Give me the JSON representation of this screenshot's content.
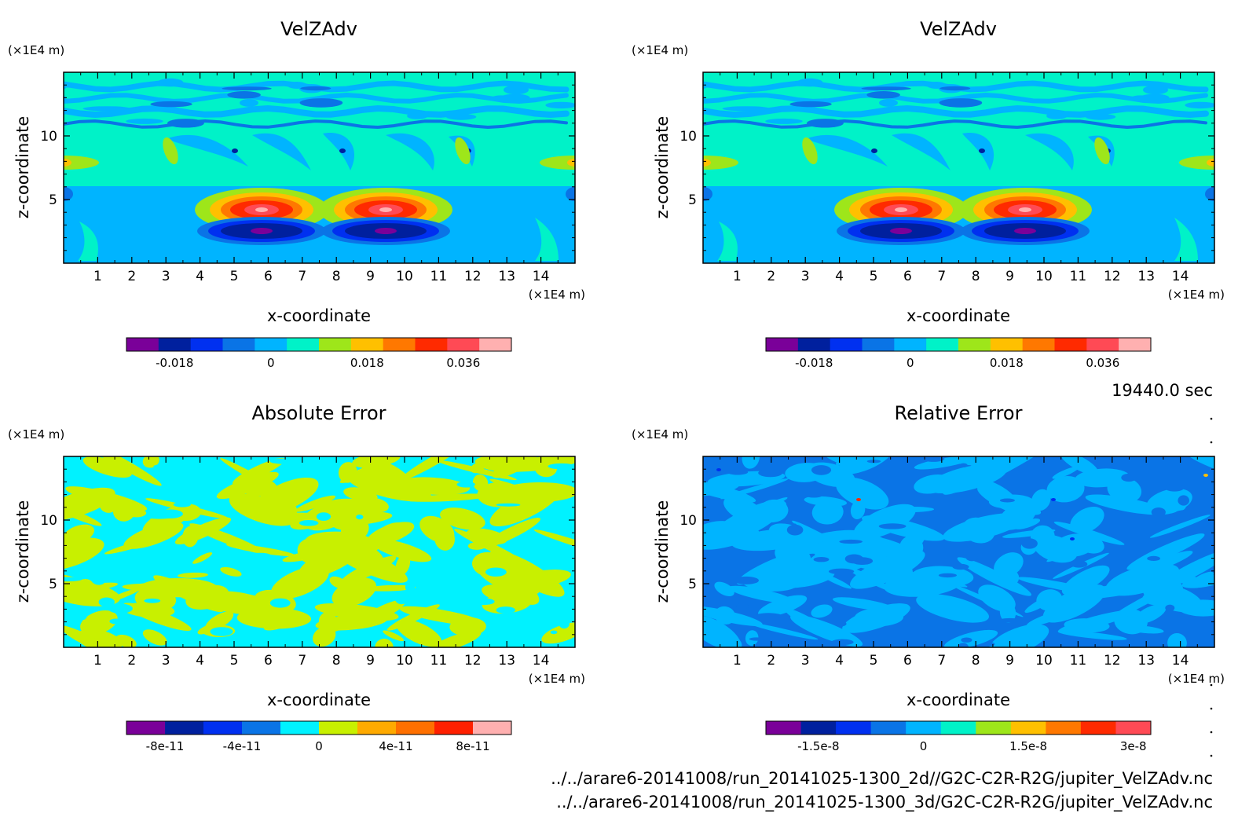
{
  "time_label": "19440.0 sec",
  "files": [
    "../../arare6-20141008/run_20141025-1300_2d//G2C-C2R-R2G/jupiter_VelZAdv.nc",
    "../../arare6-20141008/run_20141025-1300_3d/G2C-C2R-R2G/jupiter_VelZAdv.nc"
  ],
  "chart_data": [
    {
      "type": "heatmap",
      "title": "VelZAdv",
      "xlabel": "x-coordinate",
      "ylabel": "z-coordinate",
      "xunit": "(×1E4 m)",
      "yunit": "(×1E4 m)",
      "xlim": [
        0,
        15
      ],
      "ylim": [
        0,
        15
      ],
      "xticks": [
        "1",
        "2",
        "3",
        "4",
        "5",
        "6",
        "7",
        "8",
        "9",
        "10",
        "11",
        "12",
        "13",
        "14"
      ],
      "yticks": [
        "5",
        "10"
      ],
      "pattern": "velz",
      "colorbar": {
        "colors": [
          "#7a0099",
          "#00209e",
          "#0030f0",
          "#0a74e6",
          "#00b4ff",
          "#00f2c8",
          "#9ee61a",
          "#ffc000",
          "#ff7800",
          "#ff2a00",
          "#ff4a55",
          "#ffb0b0"
        ],
        "ticks": [
          "-0.018",
          "0",
          "0.018",
          "0.036"
        ],
        "tick_positions": [
          1.5,
          4.5,
          7.5,
          10.5
        ]
      }
    },
    {
      "type": "heatmap",
      "title": "VelZAdv",
      "xlabel": "x-coordinate",
      "ylabel": "z-coordinate",
      "xunit": "(×1E4 m)",
      "yunit": "(×1E4 m)",
      "xlim": [
        0,
        15
      ],
      "ylim": [
        0,
        15
      ],
      "xticks": [
        "1",
        "2",
        "3",
        "4",
        "5",
        "6",
        "7",
        "8",
        "9",
        "10",
        "11",
        "12",
        "13",
        "14"
      ],
      "yticks": [
        "5",
        "10"
      ],
      "pattern": "velz",
      "colorbar": {
        "colors": [
          "#7a0099",
          "#00209e",
          "#0030f0",
          "#0a74e6",
          "#00b4ff",
          "#00f2c8",
          "#9ee61a",
          "#ffc000",
          "#ff7800",
          "#ff2a00",
          "#ff4a55",
          "#ffb0b0"
        ],
        "ticks": [
          "-0.018",
          "0",
          "0.018",
          "0.036"
        ],
        "tick_positions": [
          1.5,
          4.5,
          7.5,
          10.5
        ]
      }
    },
    {
      "type": "heatmap",
      "title": "Absolute Error",
      "xlabel": "x-coordinate",
      "ylabel": "z-coordinate",
      "xunit": "(×1E4 m)",
      "yunit": "(×1E4 m)",
      "xlim": [
        0,
        15
      ],
      "ylim": [
        0,
        15
      ],
      "xticks": [
        "1",
        "2",
        "3",
        "4",
        "5",
        "6",
        "7",
        "8",
        "9",
        "10",
        "11",
        "12",
        "13",
        "14"
      ],
      "yticks": [
        "5",
        "10"
      ],
      "pattern": "abserr",
      "colorbar": {
        "colors": [
          "#7a0099",
          "#00209e",
          "#0030f0",
          "#0a74e6",
          "#00f2ff",
          "#c8f000",
          "#ffaa00",
          "#ff7000",
          "#ff2000",
          "#ffb0b0"
        ],
        "ticks": [
          "-8e-11",
          "-4e-11",
          "0",
          "4e-11",
          "8e-11"
        ],
        "tick_positions": [
          1,
          3,
          5,
          7,
          9
        ]
      }
    },
    {
      "type": "heatmap",
      "title": "Relative Error",
      "xlabel": "x-coordinate",
      "ylabel": "z-coordinate",
      "xunit": "(×1E4 m)",
      "yunit": "(×1E4 m)",
      "xlim": [
        0,
        15
      ],
      "ylim": [
        0,
        15
      ],
      "xticks": [
        "1",
        "2",
        "3",
        "4",
        "5",
        "6",
        "7",
        "8",
        "9",
        "10",
        "11",
        "12",
        "13",
        "14"
      ],
      "yticks": [
        "5",
        "10"
      ],
      "pattern": "relerr",
      "colorbar": {
        "colors": [
          "#7a0099",
          "#00209e",
          "#0030f0",
          "#0a74e6",
          "#00b4ff",
          "#00f2c8",
          "#9ee61a",
          "#ffc000",
          "#ff7800",
          "#ff2a00",
          "#ff4a55"
        ],
        "ticks": [
          "-1.5e-8",
          "0",
          "1.5e-8",
          "3e-8"
        ],
        "tick_positions": [
          1.5,
          4.5,
          7.5,
          10.5
        ]
      }
    }
  ]
}
